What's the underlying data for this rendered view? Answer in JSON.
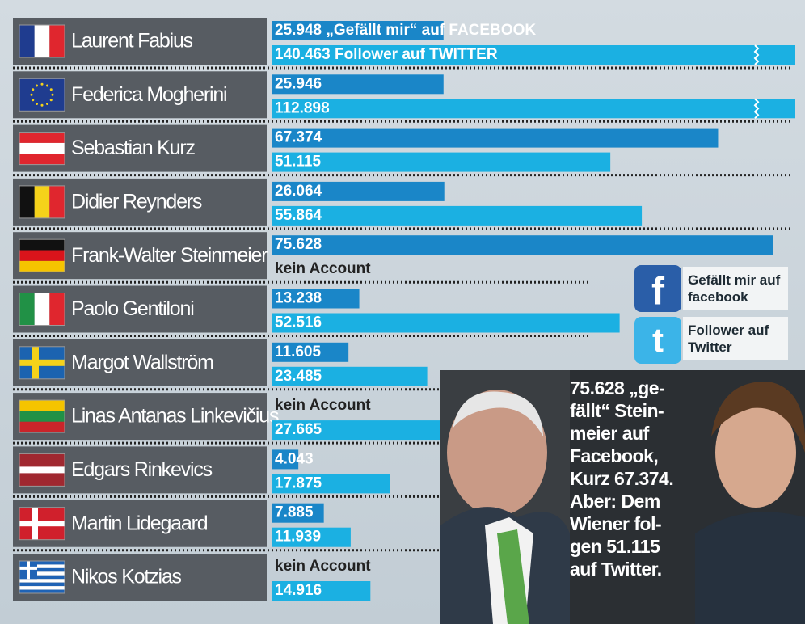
{
  "chart_data": {
    "type": "bar",
    "orientation": "horizontal",
    "categories": [
      "Laurent Fabius",
      "Federica Mogherini",
      "Sebastian Kurz",
      "Didier Reynders",
      "Frank-Walter Steinmeier",
      "Paolo Gentiloni",
      "Margot Wallström",
      "Linas Antanas Linkevičius",
      "Edgars Rinkevics",
      "Martin Lidegaard",
      "Nikos Kotzias"
    ],
    "series": [
      {
        "name": "Gefällt mir auf facebook",
        "color": "#1a86c8",
        "values": [
          25948,
          25946,
          67374,
          26064,
          75628,
          13238,
          11605,
          null,
          4043,
          7885,
          null
        ],
        "value_labels": [
          "25.948 „Gefällt mir“ auf FACEBOOK",
          "25.946",
          "67.374",
          "26.064",
          "75.628",
          "13.238",
          "11.605",
          "kein Account",
          "4.043",
          "7.885",
          "kein Account"
        ]
      },
      {
        "name": "Follower auf Twitter",
        "color": "#1bb0e2",
        "values": [
          140463,
          112898,
          51115,
          55864,
          null,
          52516,
          23485,
          27665,
          17875,
          11939,
          14916
        ],
        "value_labels": [
          "140.463 Follower auf TWITTER",
          "112.898",
          "51.115",
          "55.864",
          "kein Account",
          "52.516",
          "23.485",
          "27.665",
          "17.875",
          "11.939",
          "14.916"
        ]
      }
    ],
    "caption": [
      "75.628 „ge-",
      "fällt“ Stein-",
      "meier auf",
      "Facebook,",
      "Kurz 67.374.",
      "Aber: Dem",
      "Wiener fol-",
      "gen 51.115",
      "auf Twitter."
    ]
  }
}
